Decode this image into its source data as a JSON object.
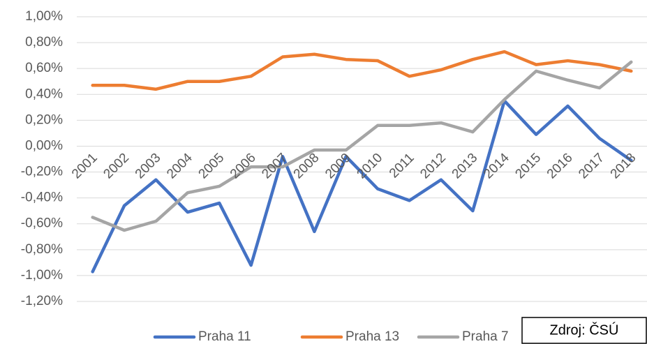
{
  "chart_data": {
    "type": "line",
    "categories": [
      "2001",
      "2002",
      "2003",
      "2004",
      "2005",
      "2006",
      "2007",
      "2008",
      "2009",
      "2010",
      "2011",
      "2012",
      "2013",
      "2014",
      "2015",
      "2016",
      "2017",
      "2018"
    ],
    "series": [
      {
        "name": "Praha 11",
        "color": "#4472c4",
        "values": [
          -0.97,
          -0.46,
          -0.26,
          -0.51,
          -0.44,
          -0.92,
          -0.08,
          -0.66,
          -0.08,
          -0.33,
          -0.42,
          -0.26,
          -0.5,
          0.35,
          0.09,
          0.31,
          0.06,
          -0.11
        ]
      },
      {
        "name": "Praha 13",
        "color": "#ed7d31",
        "values": [
          0.47,
          0.47,
          0.44,
          0.5,
          0.5,
          0.54,
          0.69,
          0.71,
          0.67,
          0.66,
          0.54,
          0.59,
          0.67,
          0.73,
          0.63,
          0.66,
          0.63,
          0.58
        ]
      },
      {
        "name": "Praha 7",
        "color": "#a5a5a5",
        "values": [
          -0.55,
          -0.65,
          -0.58,
          -0.36,
          -0.31,
          -0.16,
          -0.16,
          -0.03,
          -0.03,
          0.16,
          0.16,
          0.18,
          0.11,
          0.36,
          0.58,
          0.51,
          0.45,
          0.65
        ]
      }
    ],
    "ylim": [
      -1.2,
      1.0
    ],
    "yticks": [
      {
        "value": -1.2,
        "label": "-1,20%"
      },
      {
        "value": -1.0,
        "label": "-1,00%"
      },
      {
        "value": -0.8,
        "label": "-0,80%"
      },
      {
        "value": -0.6,
        "label": "-0,60%"
      },
      {
        "value": -0.4,
        "label": "-0,40%"
      },
      {
        "value": -0.2,
        "label": "-0,20%"
      },
      {
        "value": 0,
        "label": "0,00%"
      },
      {
        "value": 0.2,
        "label": "0,20%"
      },
      {
        "value": 0.4,
        "label": "0,40%"
      },
      {
        "value": 0.6,
        "label": "0,60%"
      },
      {
        "value": 0.8,
        "label": "0,80%"
      },
      {
        "value": 1.0,
        "label": "1,00%"
      }
    ],
    "grid": true,
    "legend": "bottom",
    "source": "Zdroj: ČSÚ"
  }
}
